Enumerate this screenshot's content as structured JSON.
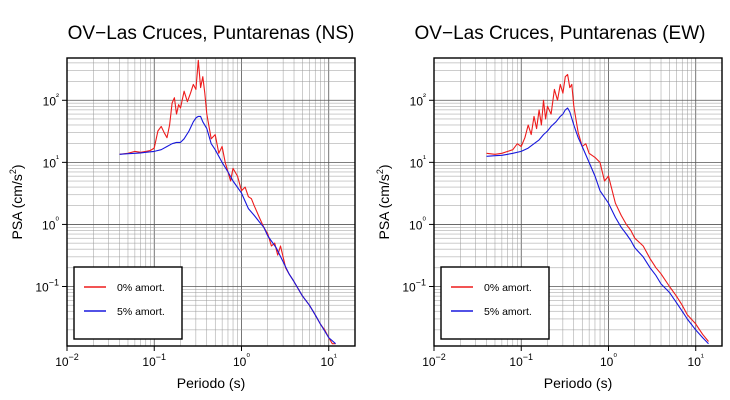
{
  "chart_data": [
    {
      "type": "line",
      "title": "OV−Las Cruces, Puntarenas (NS)",
      "xlabel": "Periodo (s)",
      "ylabel": "PSA (cm/s²)",
      "xscale": "log",
      "yscale": "log",
      "xlim": [
        0.01,
        20
      ],
      "ylim": [
        0.011,
        480
      ],
      "x_ticks": [
        "10−2",
        "10−1",
        "10⁰",
        "10¹"
      ],
      "y_ticks": [
        "10−1",
        "10⁰",
        "10¹",
        "10²"
      ],
      "grid": true,
      "legend": "bottom-left",
      "series": [
        {
          "name": "0% amort.",
          "color": "#ee1c1c",
          "x": [
            0.04,
            0.05,
            0.06,
            0.07,
            0.08,
            0.09,
            0.1,
            0.11,
            0.12,
            0.13,
            0.14,
            0.15,
            0.16,
            0.17,
            0.18,
            0.19,
            0.2,
            0.22,
            0.24,
            0.26,
            0.28,
            0.3,
            0.32,
            0.34,
            0.36,
            0.38,
            0.4,
            0.45,
            0.5,
            0.55,
            0.6,
            0.65,
            0.7,
            0.75,
            0.8,
            0.9,
            1.0,
            1.1,
            1.2,
            1.3,
            1.4,
            1.5,
            1.6,
            1.8,
            2.0,
            2.2,
            2.4,
            2.6,
            2.8,
            3.0,
            3.2,
            3.5,
            4.0,
            4.5,
            5.0,
            6.0,
            7.0,
            8.0,
            9.0,
            10.0,
            11.0,
            12.0
          ],
          "y": [
            13.5,
            14,
            15,
            14.5,
            15,
            15.5,
            17,
            32,
            38,
            30,
            25,
            40,
            90,
            110,
            60,
            85,
            75,
            140,
            95,
            130,
            180,
            150,
            440,
            160,
            240,
            130,
            60,
            24,
            28,
            14,
            18,
            10,
            7,
            5,
            8,
            6,
            3.5,
            4,
            2.8,
            2.6,
            2,
            1.6,
            1.3,
            0.9,
            0.7,
            0.45,
            0.5,
            0.32,
            0.45,
            0.3,
            0.2,
            0.16,
            0.12,
            0.09,
            0.07,
            0.05,
            0.035,
            0.025,
            0.02,
            0.015,
            0.012,
            0.012
          ]
        },
        {
          "name": "5% amort.",
          "color": "#1818dd",
          "x": [
            0.04,
            0.05,
            0.06,
            0.07,
            0.08,
            0.09,
            0.1,
            0.12,
            0.14,
            0.16,
            0.18,
            0.2,
            0.22,
            0.25,
            0.28,
            0.3,
            0.32,
            0.34,
            0.36,
            0.4,
            0.45,
            0.5,
            0.6,
            0.7,
            0.8,
            1.0,
            1.2,
            1.4,
            1.6,
            1.8,
            2.0,
            2.5,
            3.0,
            3.5,
            4.0,
            5.0,
            6.0,
            7.0,
            8.0,
            10.0,
            12.0
          ],
          "y": [
            13.5,
            13.8,
            14,
            14.2,
            14.5,
            14.8,
            15,
            16,
            18,
            20,
            21,
            21,
            24,
            32,
            45,
            52,
            55,
            55,
            45,
            35,
            20,
            16,
            10,
            7,
            5,
            3.2,
            1.8,
            1.4,
            1.1,
            0.9,
            0.65,
            0.42,
            0.25,
            0.16,
            0.12,
            0.07,
            0.05,
            0.035,
            0.025,
            0.015,
            0.012
          ]
        }
      ]
    },
    {
      "type": "line",
      "title": "OV−Las Cruces, Puntarenas (EW)",
      "xlabel": "Periodo (s)",
      "ylabel": "PSA (cm/s²)",
      "xscale": "log",
      "yscale": "log",
      "xlim": [
        0.01,
        20
      ],
      "ylim": [
        0.011,
        480
      ],
      "x_ticks": [
        "10−2",
        "10−1",
        "10⁰",
        "10¹"
      ],
      "y_ticks": [
        "10−1",
        "10⁰",
        "10¹",
        "10²"
      ],
      "grid": true,
      "legend": "bottom-left",
      "series": [
        {
          "name": "0% amort.",
          "color": "#ee1c1c",
          "x": [
            0.04,
            0.05,
            0.06,
            0.07,
            0.08,
            0.09,
            0.1,
            0.11,
            0.12,
            0.13,
            0.14,
            0.15,
            0.16,
            0.17,
            0.18,
            0.19,
            0.2,
            0.22,
            0.24,
            0.26,
            0.28,
            0.3,
            0.32,
            0.34,
            0.36,
            0.38,
            0.4,
            0.45,
            0.5,
            0.55,
            0.6,
            0.7,
            0.8,
            0.9,
            1.0,
            1.2,
            1.4,
            1.6,
            1.8,
            2.0,
            2.5,
            3.0,
            3.5,
            4.0,
            5.0,
            6.0,
            7.0,
            8.0,
            10.0,
            12.0,
            14.0
          ],
          "y": [
            14,
            13.5,
            14,
            15,
            16,
            20,
            18,
            25,
            40,
            28,
            55,
            35,
            70,
            40,
            100,
            50,
            80,
            60,
            150,
            100,
            180,
            130,
            240,
            260,
            160,
            180,
            80,
            30,
            18,
            20,
            14,
            12,
            10,
            5,
            6,
            2.2,
            1.4,
            1.0,
            0.8,
            0.6,
            0.45,
            0.28,
            0.2,
            0.16,
            0.1,
            0.07,
            0.05,
            0.035,
            0.025,
            0.017,
            0.013
          ]
        },
        {
          "name": "5% amort.",
          "color": "#1818dd",
          "x": [
            0.04,
            0.05,
            0.06,
            0.07,
            0.08,
            0.1,
            0.12,
            0.14,
            0.16,
            0.18,
            0.2,
            0.22,
            0.25,
            0.28,
            0.3,
            0.32,
            0.34,
            0.36,
            0.4,
            0.45,
            0.5,
            0.6,
            0.7,
            0.8,
            1.0,
            1.2,
            1.4,
            1.6,
            1.8,
            2.0,
            2.5,
            3.0,
            3.5,
            4.0,
            5.0,
            6.0,
            7.0,
            8.0,
            10.0,
            12.0,
            14.0
          ],
          "y": [
            12.5,
            12.8,
            13,
            13.5,
            14,
            15,
            17,
            20,
            23,
            28,
            32,
            38,
            45,
            55,
            60,
            70,
            75,
            65,
            40,
            25,
            18,
            10,
            6,
            3.5,
            2.2,
            1.3,
            0.9,
            0.7,
            0.55,
            0.42,
            0.3,
            0.2,
            0.15,
            0.11,
            0.08,
            0.055,
            0.04,
            0.03,
            0.02,
            0.015,
            0.012
          ]
        }
      ]
    }
  ]
}
